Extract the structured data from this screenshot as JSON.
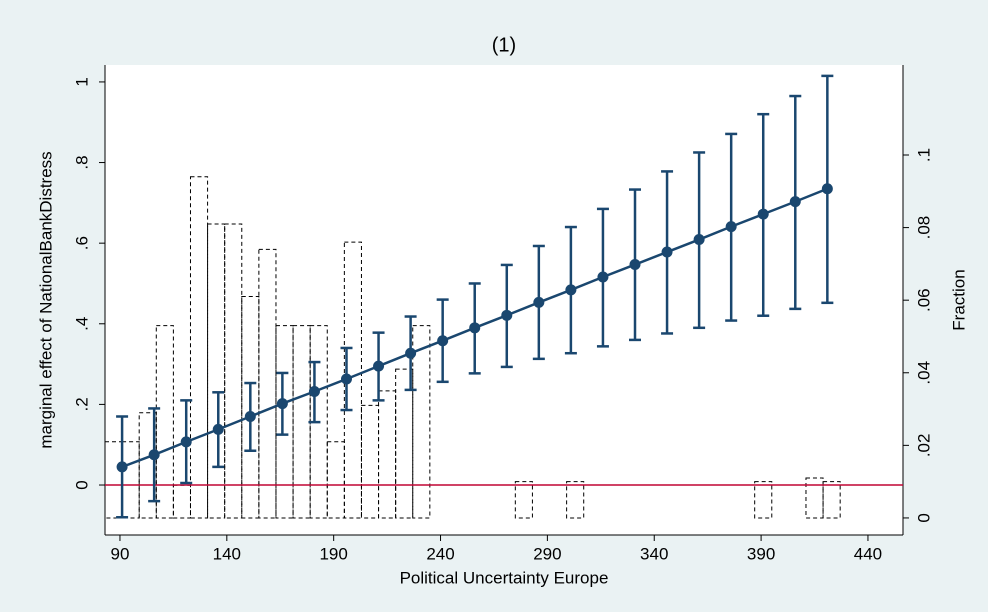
{
  "chart_data": {
    "type": "line",
    "title": "(1)",
    "x_label": "Political Uncertainty Europe",
    "y_label": "marginal effect of NationalBankDistress",
    "y2_label": "Fraction",
    "x": [
      91,
      106,
      121,
      136,
      151,
      166,
      181,
      196,
      211,
      226,
      241,
      256,
      271,
      286,
      301,
      316,
      331,
      346,
      361,
      376,
      391,
      406,
      421
    ],
    "series": [
      {
        "color": "#1a476f",
        "values": [
          0.045,
          0.075,
          0.107,
          0.138,
          0.17,
          0.202,
          0.232,
          0.263,
          0.295,
          0.327,
          0.358,
          0.39,
          0.421,
          0.453,
          0.484,
          0.516,
          0.547,
          0.578,
          0.609,
          0.641,
          0.672,
          0.703,
          0.735
        ],
        "lower": [
          -0.08,
          -0.04,
          0.005,
          0.045,
          0.085,
          0.125,
          0.156,
          0.186,
          0.21,
          0.236,
          0.256,
          0.277,
          0.293,
          0.313,
          0.327,
          0.344,
          0.36,
          0.376,
          0.39,
          0.408,
          0.42,
          0.437,
          0.452
        ],
        "upper": [
          0.17,
          0.19,
          0.21,
          0.23,
          0.253,
          0.278,
          0.305,
          0.34,
          0.378,
          0.418,
          0.46,
          0.5,
          0.546,
          0.593,
          0.64,
          0.685,
          0.733,
          0.778,
          0.825,
          0.871,
          0.92,
          0.965,
          1.015
        ]
      }
    ],
    "histogram": {
      "axis": "y2",
      "color": "#000000",
      "bins": [
        83,
        91,
        99,
        107,
        115,
        123,
        131,
        139,
        147,
        155,
        163,
        171,
        179,
        187,
        195,
        203,
        211,
        219,
        227,
        235,
        243,
        251,
        259,
        267,
        275,
        283,
        291,
        299,
        307,
        315,
        323,
        331,
        339,
        347,
        355,
        363,
        371,
        379,
        387,
        395,
        403,
        411,
        419,
        427,
        435
      ],
      "values": [
        0.021,
        0.021,
        0.029,
        0.053,
        0.009,
        0.094,
        0.081,
        0.081,
        0.061,
        0.074,
        0.053,
        0.053,
        0.053,
        0.021,
        0.076,
        0.031,
        0.035,
        0.041,
        0.053,
        0,
        0,
        0,
        0,
        0,
        0.01,
        0,
        0,
        0.01,
        0,
        0,
        0,
        0,
        0,
        0,
        0,
        0,
        0,
        0,
        0.01,
        0,
        0,
        0.011,
        0.01,
        0
      ]
    },
    "reference_line": {
      "y": 0,
      "color": "#c10534"
    },
    "xlim": [
      83,
      456.4
    ],
    "xticks": [
      90,
      140,
      190,
      240,
      290,
      340,
      390,
      440
    ],
    "ylim": [
      -0.124,
      1.042
    ],
    "yticks": [
      0,
      {
        "value": 0.2,
        "label": ".2"
      },
      {
        "value": 0.4,
        "label": ".4"
      },
      {
        "value": 0.6,
        "label": ".6"
      },
      {
        "value": 0.8,
        "label": ".8"
      },
      1
    ],
    "y2lim": [
      -0.0047,
      0.1248
    ],
    "y2ticks": [
      0,
      {
        "value": 0.02,
        "label": ".02"
      },
      {
        "value": 0.04,
        "label": ".04"
      },
      {
        "value": 0.06,
        "label": ".06"
      },
      {
        "value": 0.08,
        "label": ".08"
      },
      {
        "value": 0.1,
        "label": ".1"
      }
    ],
    "grid": false
  }
}
